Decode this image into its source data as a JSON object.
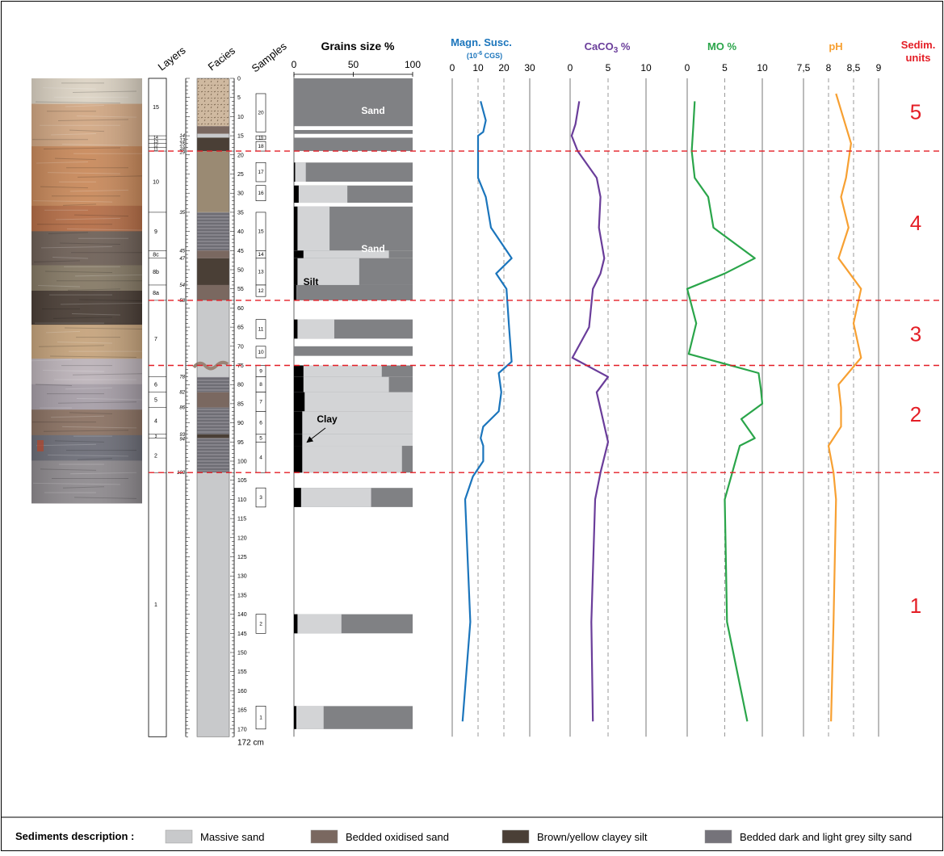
{
  "colors": {
    "massive_sand": "#c8c9cb",
    "bedded_oxidised_sand": "#7a6860",
    "brown_clayey_silt": "#4a3f36",
    "bedded_grey_silty_sand": "#75737a",
    "layer10_brown": "#9a8a73",
    "grain_sand": "#808184",
    "grain_silt": "#d3d4d6",
    "grain_clay": "#000000",
    "magn": "#1b75bc",
    "caco3": "#6a3d9a",
    "mo": "#2aa54a",
    "ph": "#f7a032",
    "red": "#e41e26",
    "photo_strata": [
      "#dcd3c4",
      "#d2a884",
      "#c98a5c",
      "#b66f48",
      "#6f6158",
      "#867a66",
      "#4b3f37",
      "#c6a47d",
      "#bdb4ba",
      "#a79fa8",
      "#8c7364",
      "#6e6f79",
      "#8f8b8f",
      "#7f7980"
    ]
  },
  "photo_icon": "outcrop-photo",
  "headers": {
    "layers": "Layers",
    "facies": "Facies",
    "samples": "Samples",
    "grains": "Grains size %",
    "magn_title": "Magn. Susc.",
    "magn_unit_pre": "(10",
    "magn_unit_exp": "-6",
    "magn_unit_post": " CGS)",
    "caco3_pre": "CaCO",
    "caco3_sub": "3",
    "caco3_post": " %",
    "mo": "MO %",
    "ph": "pH",
    "units_line1": "Sedim.",
    "units_line2": "units"
  },
  "depth_axis": {
    "max": 172,
    "major_labels": [
      "0",
      "5",
      "10",
      "15",
      "20",
      "25",
      "30",
      "35",
      "40",
      "45",
      "50",
      "55",
      "60",
      "65",
      "70",
      "75",
      "80",
      "85",
      "90",
      "95",
      "100",
      "105",
      "110",
      "115",
      "120",
      "125",
      "130",
      "135",
      "140",
      "145",
      "150",
      "155",
      "160",
      "165",
      "170"
    ],
    "major_values": [
      0,
      5,
      10,
      15,
      20,
      25,
      30,
      35,
      40,
      45,
      50,
      55,
      60,
      65,
      70,
      75,
      80,
      85,
      90,
      95,
      100,
      105,
      110,
      115,
      120,
      125,
      130,
      135,
      140,
      145,
      150,
      155,
      160,
      165,
      170
    ],
    "bottom_label": "172 cm"
  },
  "layers": [
    {
      "label": "15",
      "top": 0,
      "bottom": 15
    },
    {
      "label": "14",
      "top": 15,
      "bottom": 16
    },
    {
      "label": "13",
      "top": 16,
      "bottom": 17
    },
    {
      "label": "12",
      "top": 17,
      "bottom": 18
    },
    {
      "label": "11",
      "top": 18,
      "bottom": 19
    },
    {
      "label": "10",
      "top": 19,
      "bottom": 35
    },
    {
      "label": "9",
      "top": 35,
      "bottom": 45
    },
    {
      "label": "8c",
      "top": 45,
      "bottom": 47
    },
    {
      "label": "8b",
      "top": 47,
      "bottom": 54
    },
    {
      "label": "8a",
      "top": 54,
      "bottom": 58
    },
    {
      "label": "7",
      "top": 58,
      "bottom": 78
    },
    {
      "label": "6",
      "top": 78,
      "bottom": 82
    },
    {
      "label": "5",
      "top": 82,
      "bottom": 86
    },
    {
      "label": "4",
      "top": 86,
      "bottom": 93
    },
    {
      "label": "3",
      "top": 93,
      "bottom": 94
    },
    {
      "label": "2",
      "top": 94,
      "bottom": 103
    },
    {
      "label": "1",
      "top": 103,
      "bottom": 172
    }
  ],
  "layer_boundary_labels": [
    {
      "text": "13",
      "depth": 16.1
    },
    {
      "text": "14",
      "depth": 15.0
    },
    {
      "text": "15",
      "depth": 17.2
    },
    {
      "text": "18",
      "depth": 18.4
    },
    {
      "text": "19",
      "depth": 19.3
    },
    {
      "text": "35",
      "depth": 35
    },
    {
      "text": "45",
      "depth": 45
    },
    {
      "text": "47",
      "depth": 47
    },
    {
      "text": "54",
      "depth": 54
    },
    {
      "text": "58",
      "depth": 58
    },
    {
      "text": "78",
      "depth": 78
    },
    {
      "text": "82",
      "depth": 82
    },
    {
      "text": "86",
      "depth": 86
    },
    {
      "text": "93",
      "depth": 93
    },
    {
      "text": "94",
      "depth": 94.2
    },
    {
      "text": "103",
      "depth": 103
    }
  ],
  "facies": [
    {
      "type": "massive_sand",
      "top": 0,
      "bottom": 12.5,
      "pattern": "dots",
      "color": "#cfb9a0"
    },
    {
      "type": "bedded_oxidised_sand",
      "top": 12.5,
      "bottom": 14.5
    },
    {
      "type": "massive_sand",
      "top": 14.5,
      "bottom": 15.5
    },
    {
      "type": "brown_clayey_silt",
      "top": 15.5,
      "bottom": 19
    },
    {
      "type": "layer10_brown",
      "top": 19,
      "bottom": 35
    },
    {
      "type": "bedded_grey_silty_sand",
      "top": 35,
      "bottom": 45,
      "pattern": "lines"
    },
    {
      "type": "bedded_oxidised_sand",
      "top": 45,
      "bottom": 47
    },
    {
      "type": "brown_clayey_silt",
      "top": 47,
      "bottom": 54
    },
    {
      "type": "bedded_oxidised_sand",
      "top": 54,
      "bottom": 58
    },
    {
      "type": "massive_sand",
      "top": 58,
      "bottom": 78
    },
    {
      "type": "bedded_grey_silty_sand",
      "top": 78,
      "bottom": 82,
      "pattern": "lines"
    },
    {
      "type": "bedded_oxidised_sand",
      "top": 82,
      "bottom": 86
    },
    {
      "type": "bedded_grey_silty_sand",
      "top": 86,
      "bottom": 93,
      "pattern": "lines"
    },
    {
      "type": "brown_clayey_silt",
      "top": 93,
      "bottom": 94
    },
    {
      "type": "bedded_grey_silty_sand",
      "top": 94,
      "bottom": 103,
      "pattern": "lines"
    },
    {
      "type": "massive_sand",
      "top": 103,
      "bottom": 172
    }
  ],
  "samples": [
    {
      "label": "20",
      "top": 4,
      "bottom": 14
    },
    {
      "label": "19",
      "top": 15,
      "bottom": 16
    },
    {
      "label": "18",
      "top": 16.5,
      "bottom": 19
    },
    {
      "label": "17",
      "top": 22,
      "bottom": 27
    },
    {
      "label": "16",
      "top": 28,
      "bottom": 32
    },
    {
      "label": "15",
      "top": 35,
      "bottom": 45
    },
    {
      "label": "14",
      "top": 45,
      "bottom": 47
    },
    {
      "label": "13",
      "top": 47,
      "bottom": 54
    },
    {
      "label": "12",
      "top": 54,
      "bottom": 57
    },
    {
      "label": "11",
      "top": 63,
      "bottom": 68
    },
    {
      "label": "10",
      "top": 70,
      "bottom": 73
    },
    {
      "label": "9",
      "top": 75,
      "bottom": 78
    },
    {
      "label": "8",
      "top": 78,
      "bottom": 82
    },
    {
      "label": "7",
      "top": 82,
      "bottom": 87
    },
    {
      "label": "6",
      "top": 87,
      "bottom": 93
    },
    {
      "label": "5",
      "top": 93,
      "bottom": 95
    },
    {
      "label": "4",
      "top": 95,
      "bottom": 103
    },
    {
      "label": "3",
      "top": 107,
      "bottom": 112
    },
    {
      "label": "2",
      "top": 140,
      "bottom": 145
    },
    {
      "label": "1",
      "top": 164,
      "bottom": 170
    }
  ],
  "chart_data": [
    {
      "type": "bar",
      "name": "grain-size",
      "title": "Grains size %",
      "xlim": [
        0,
        100
      ],
      "x_ticks": [
        0,
        50,
        100
      ],
      "y_axis": "depth (cm)",
      "annotations": [
        "Sand",
        "Sand",
        "Silt",
        "Clay"
      ],
      "bars": [
        {
          "top": 0,
          "bottom": 12.5,
          "clay": 0,
          "silt": 0
        },
        {
          "top": 13.5,
          "bottom": 14.5,
          "clay": 0,
          "silt": 0
        },
        {
          "top": 15.5,
          "bottom": 19,
          "clay": 0,
          "silt": 0
        },
        {
          "top": 22,
          "bottom": 27,
          "clay": 1,
          "silt": 10
        },
        {
          "top": 28,
          "bottom": 32.5,
          "clay": 4,
          "silt": 45
        },
        {
          "top": 33.5,
          "bottom": 45,
          "clay": 3,
          "silt": 30
        },
        {
          "top": 45,
          "bottom": 47,
          "clay": 8,
          "silt": 80
        },
        {
          "top": 47,
          "bottom": 54,
          "clay": 3,
          "silt": 55
        },
        {
          "top": 54,
          "bottom": 58,
          "clay": 2,
          "silt": 0
        },
        {
          "top": 63,
          "bottom": 68,
          "clay": 3,
          "silt": 34
        },
        {
          "top": 70,
          "bottom": 72.5,
          "clay": 0,
          "silt": 0
        },
        {
          "top": 75,
          "bottom": 78,
          "clay": 8,
          "silt": 74
        },
        {
          "top": 78,
          "bottom": 82,
          "clay": 8,
          "silt": 80
        },
        {
          "top": 82,
          "bottom": 87,
          "clay": 9,
          "silt": 100
        },
        {
          "top": 87,
          "bottom": 93,
          "clay": 7,
          "silt": 100
        },
        {
          "top": 93,
          "bottom": 96,
          "clay": 7,
          "silt": 100
        },
        {
          "top": 96,
          "bottom": 103,
          "clay": 7,
          "silt": 91
        },
        {
          "top": 107,
          "bottom": 112,
          "clay": 6,
          "silt": 65
        },
        {
          "top": 140,
          "bottom": 145,
          "clay": 3,
          "silt": 40
        },
        {
          "top": 164,
          "bottom": 170,
          "clay": 2,
          "silt": 25
        }
      ]
    },
    {
      "type": "line",
      "name": "magn-susc",
      "title": "Magn. Susc.",
      "xlim": [
        0,
        30
      ],
      "x_ticks": [
        0,
        10,
        20,
        30
      ],
      "x_tick_labels": [
        "0",
        "10",
        "20",
        "30"
      ],
      "dashed_ticks": [
        10,
        20
      ],
      "series": [
        {
          "depth": [
            6,
            11,
            14,
            15,
            19,
            26,
            31,
            39,
            47,
            51,
            55,
            65,
            74,
            77,
            82,
            87,
            91,
            94,
            96,
            100,
            104,
            110,
            142,
            168
          ],
          "value": [
            11,
            13,
            12,
            10,
            10,
            10,
            13,
            15,
            23,
            17,
            21,
            22,
            23,
            18,
            19,
            18,
            12,
            11,
            12,
            12,
            8,
            5,
            7,
            4
          ]
        }
      ]
    },
    {
      "type": "line",
      "name": "caco3",
      "title": "CaCO3 %",
      "xlim": [
        0,
        10
      ],
      "x_ticks": [
        0,
        5,
        10
      ],
      "x_tick_labels": [
        "0",
        "5",
        "10"
      ],
      "dashed_ticks": [
        5
      ],
      "series": [
        {
          "depth": [
            6,
            12,
            15,
            19,
            26,
            31,
            39,
            47,
            51,
            55,
            65,
            73,
            78,
            82,
            95,
            103,
            110,
            142,
            168
          ],
          "value": [
            1.2,
            0.7,
            0.2,
            1,
            3.5,
            4,
            3.8,
            4.5,
            4,
            3,
            2.5,
            0.3,
            5,
            3.5,
            5,
            4,
            3.3,
            2.8,
            3
          ]
        }
      ]
    },
    {
      "type": "line",
      "name": "mo",
      "title": "MO %",
      "xlim": [
        0,
        10
      ],
      "x_ticks": [
        0,
        5,
        10
      ],
      "x_tick_labels": [
        "0",
        "5",
        "10"
      ],
      "dashed_ticks": [
        5
      ],
      "series": [
        {
          "depth": [
            6,
            13,
            19,
            26,
            31,
            39,
            47,
            51,
            55,
            64,
            72,
            77,
            81,
            85,
            89,
            94,
            96,
            103,
            110,
            142,
            168
          ],
          "value": [
            1,
            0.8,
            0.6,
            1,
            2.8,
            3.5,
            9,
            5,
            0,
            1.2,
            0.2,
            9.5,
            9.8,
            10,
            7.2,
            9,
            7,
            6,
            5,
            5.3,
            8
          ]
        }
      ]
    },
    {
      "type": "line",
      "name": "ph",
      "title": "pH",
      "xlim": [
        7.5,
        9
      ],
      "x_ticks": [
        7.5,
        8,
        8.5,
        9
      ],
      "x_tick_labels": [
        "7,5",
        "8",
        "8,5",
        "9"
      ],
      "dashed_ticks": [
        8,
        8.5
      ],
      "series": [
        {
          "depth": [
            4,
            17,
            26,
            31,
            39,
            47,
            55,
            64,
            73,
            80,
            86,
            91,
            96,
            103,
            110,
            142,
            168
          ],
          "value": [
            8.15,
            8.45,
            8.35,
            8.25,
            8.4,
            8.2,
            8.65,
            8.5,
            8.65,
            8.2,
            8.25,
            8.25,
            8,
            8.1,
            8.15,
            8.1,
            8.05
          ]
        }
      ]
    }
  ],
  "unit_boundaries": [
    19,
    58,
    75,
    103
  ],
  "units": [
    {
      "label": "5",
      "depth": 9
    },
    {
      "label": "4",
      "depth": 38
    },
    {
      "label": "3",
      "depth": 67
    },
    {
      "label": "2",
      "depth": 88
    },
    {
      "label": "1",
      "depth": 138
    }
  ],
  "legend": {
    "title": "Sediments description :",
    "items": [
      {
        "label": "Massive sand",
        "type": "massive_sand"
      },
      {
        "label": "Bedded oxidised sand",
        "type": "bedded_oxidised_sand"
      },
      {
        "label": "Brown/yellow clayey silt",
        "type": "brown_clayey_silt"
      },
      {
        "label": "Bedded dark and light grey silty sand",
        "type": "bedded_grey_silty_sand"
      }
    ]
  }
}
